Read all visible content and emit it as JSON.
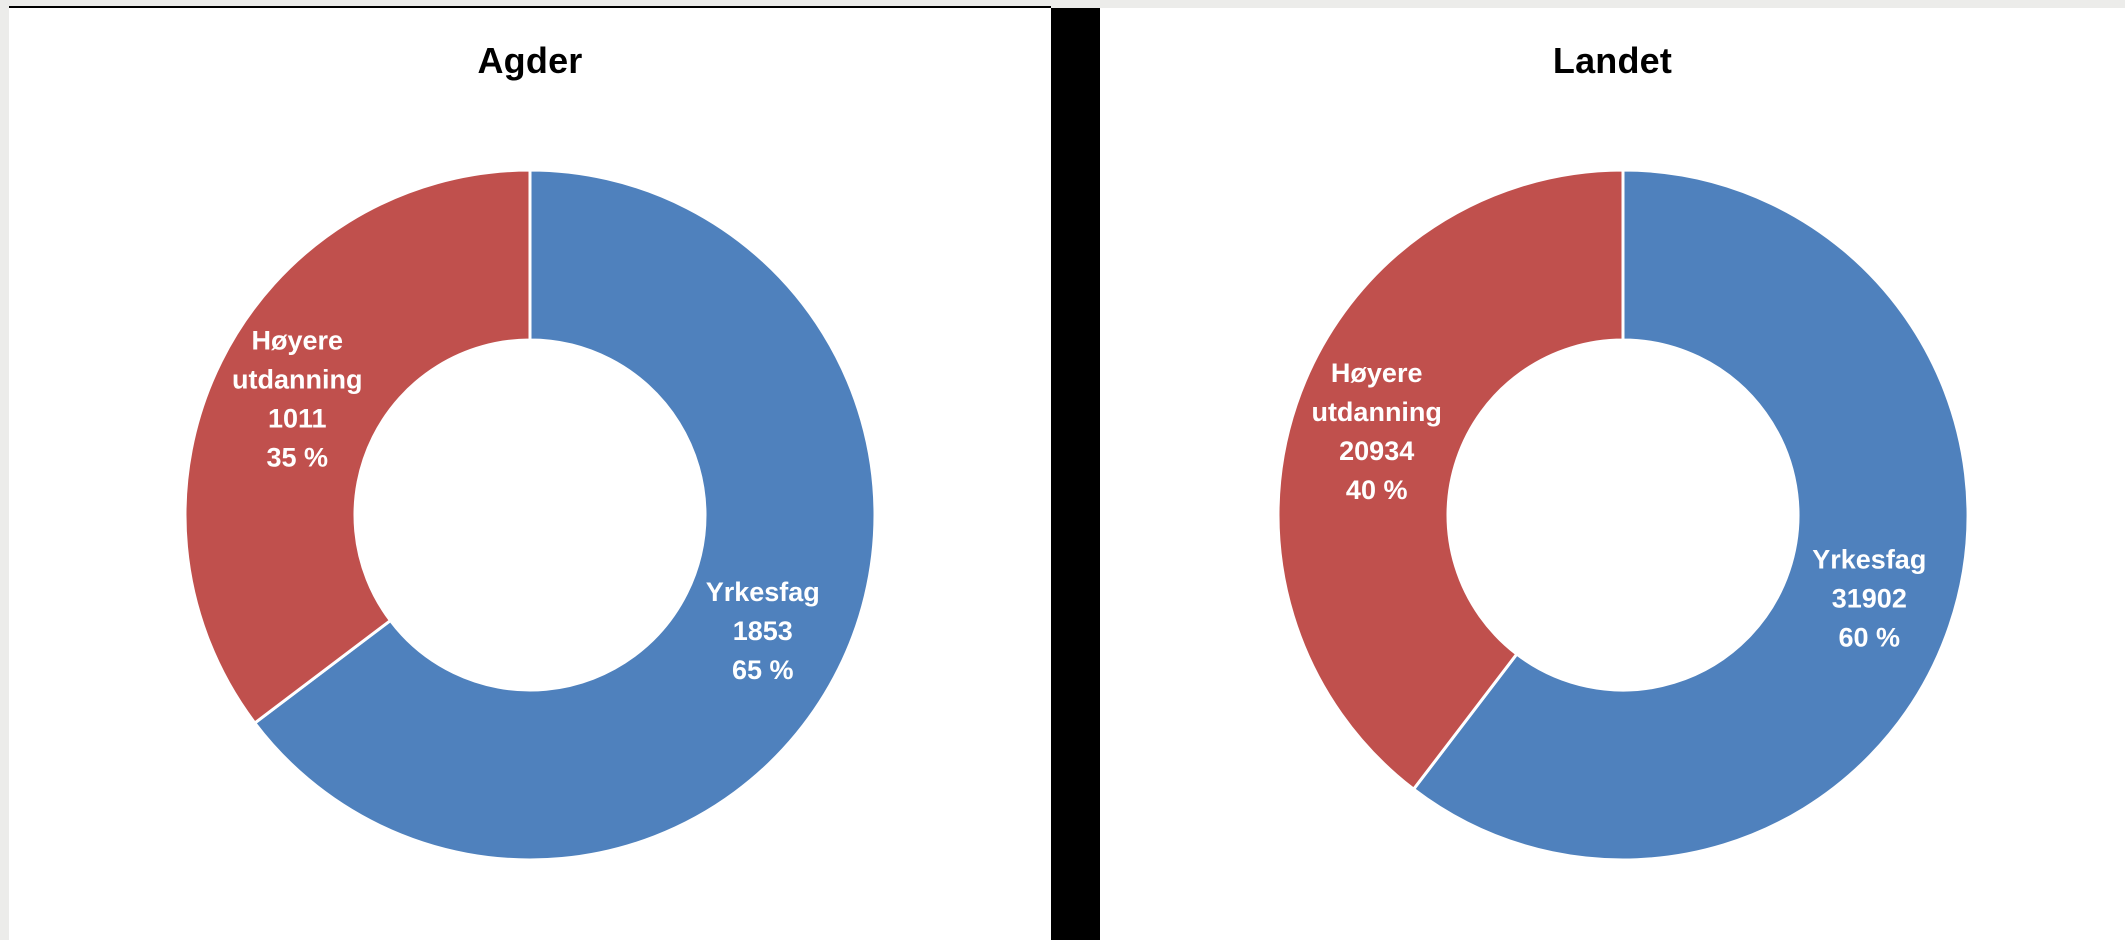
{
  "chart_data": [
    {
      "type": "pie",
      "title": "Agder",
      "colors": {
        "Yrkesfag": "#4f81bd",
        "Høyere utdanning": "#c0504d"
      },
      "slices": [
        {
          "name": "Yrkesfag",
          "label_lines": [
            "Yrkesfag"
          ],
          "value": 1853,
          "percent": 65,
          "percent_text": "65 %"
        },
        {
          "name": "Høyere utdanning",
          "label_lines": [
            "Høyere",
            "utdanning"
          ],
          "value": 1011,
          "percent": 35,
          "percent_text": "35 %"
        }
      ]
    },
    {
      "type": "pie",
      "title": "Landet",
      "colors": {
        "Yrkesfag": "#4f81bd",
        "Høyere utdanning": "#c0504d"
      },
      "slices": [
        {
          "name": "Yrkesfag",
          "label_lines": [
            "Yrkesfag"
          ],
          "value": 31902,
          "percent": 60,
          "percent_text": "60 %"
        },
        {
          "name": "Høyere utdanning",
          "label_lines": [
            "Høyere",
            "utdanning"
          ],
          "value": 20934,
          "percent": 40,
          "percent_text": "40 %"
        }
      ]
    }
  ]
}
